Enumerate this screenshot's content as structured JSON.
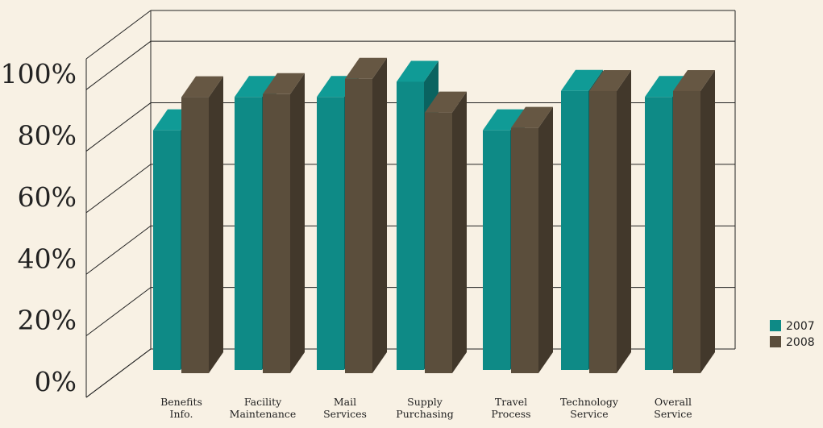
{
  "chart_data": {
    "type": "bar",
    "title": "",
    "xlabel": "",
    "ylabel": "",
    "ylim": [
      0,
      100
    ],
    "yticks": [
      "0%",
      "20%",
      "40%",
      "60%",
      "80%",
      "100%"
    ],
    "categories": [
      [
        "Benefits",
        "Info."
      ],
      [
        "Facility",
        "Maintenance"
      ],
      [
        "Mail",
        "Services"
      ],
      [
        "Supply",
        "Purchasing"
      ],
      [
        "Travel",
        "Process"
      ],
      [
        "Technology",
        "Service"
      ],
      [
        "Overall",
        "Service"
      ]
    ],
    "series": [
      {
        "name": "2007",
        "color": "#0e8a86",
        "values": [
          79,
          90,
          90,
          95,
          79,
          92,
          90
        ]
      },
      {
        "name": "2008",
        "color": "#5b4e3c",
        "values": [
          90,
          91,
          96,
          85,
          80,
          92,
          92
        ]
      }
    ],
    "legend": "right",
    "grid": true,
    "style": "3d"
  }
}
